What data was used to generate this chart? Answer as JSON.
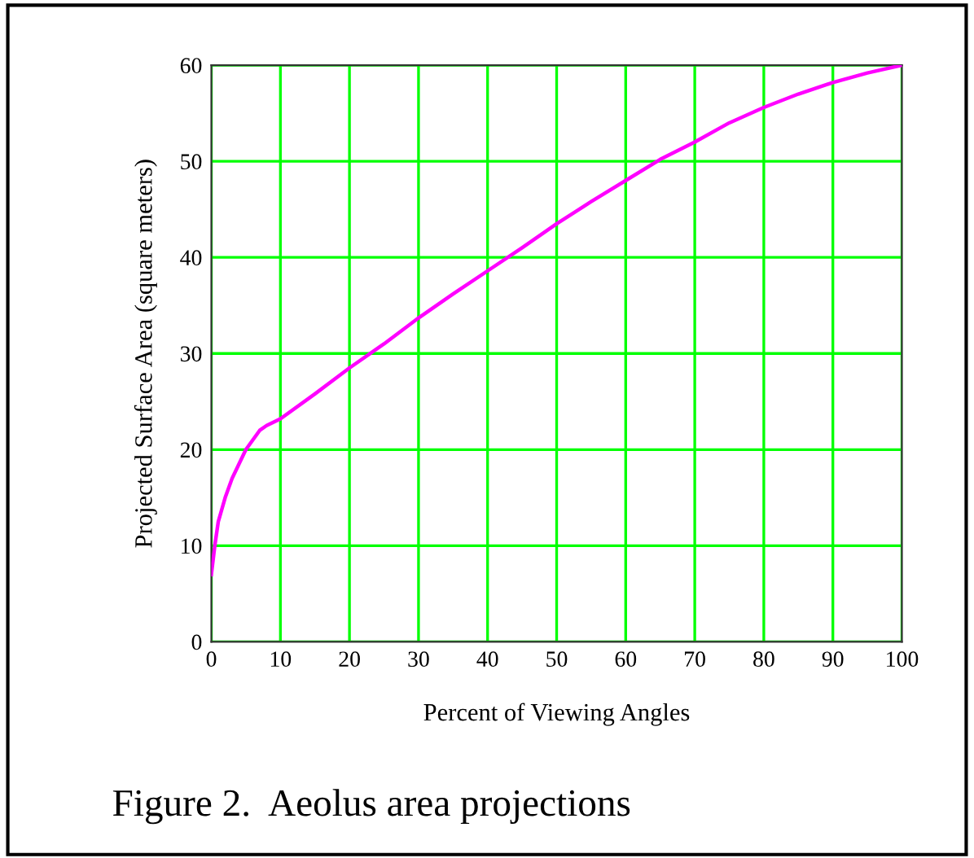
{
  "chart_data": {
    "type": "line",
    "xlabel": "Percent of Viewing Angles",
    "ylabel": "Projected Surface Area (square meters)",
    "annotations": [
      "Figure 2.  Aeolus area projections"
    ],
    "series": [
      {
        "color": "#ff00ff",
        "x": [
          0,
          0.5,
          1,
          2,
          3,
          4,
          5,
          6,
          7,
          8,
          10,
          15,
          20,
          25,
          30,
          35,
          40,
          45,
          50,
          55,
          60,
          65,
          70,
          75,
          80,
          85,
          90,
          95,
          100
        ],
        "values": [
          7,
          10,
          12.5,
          15,
          17,
          18.5,
          20,
          21,
          22,
          22.5,
          23.2,
          25.8,
          28.5,
          31,
          33.7,
          36.2,
          38.6,
          41,
          43.5,
          45.8,
          48,
          50.2,
          52,
          54,
          55.6,
          57,
          58.2,
          59.2,
          60
        ]
      }
    ],
    "xlim": [
      0,
      100
    ],
    "ylim": [
      0,
      60
    ],
    "xticks": [
      0,
      10,
      20,
      30,
      40,
      50,
      60,
      70,
      80,
      90,
      100
    ],
    "yticks": [
      0,
      10,
      20,
      30,
      40,
      50,
      60
    ],
    "grid": true,
    "line_style": "solid",
    "marker": "none"
  }
}
